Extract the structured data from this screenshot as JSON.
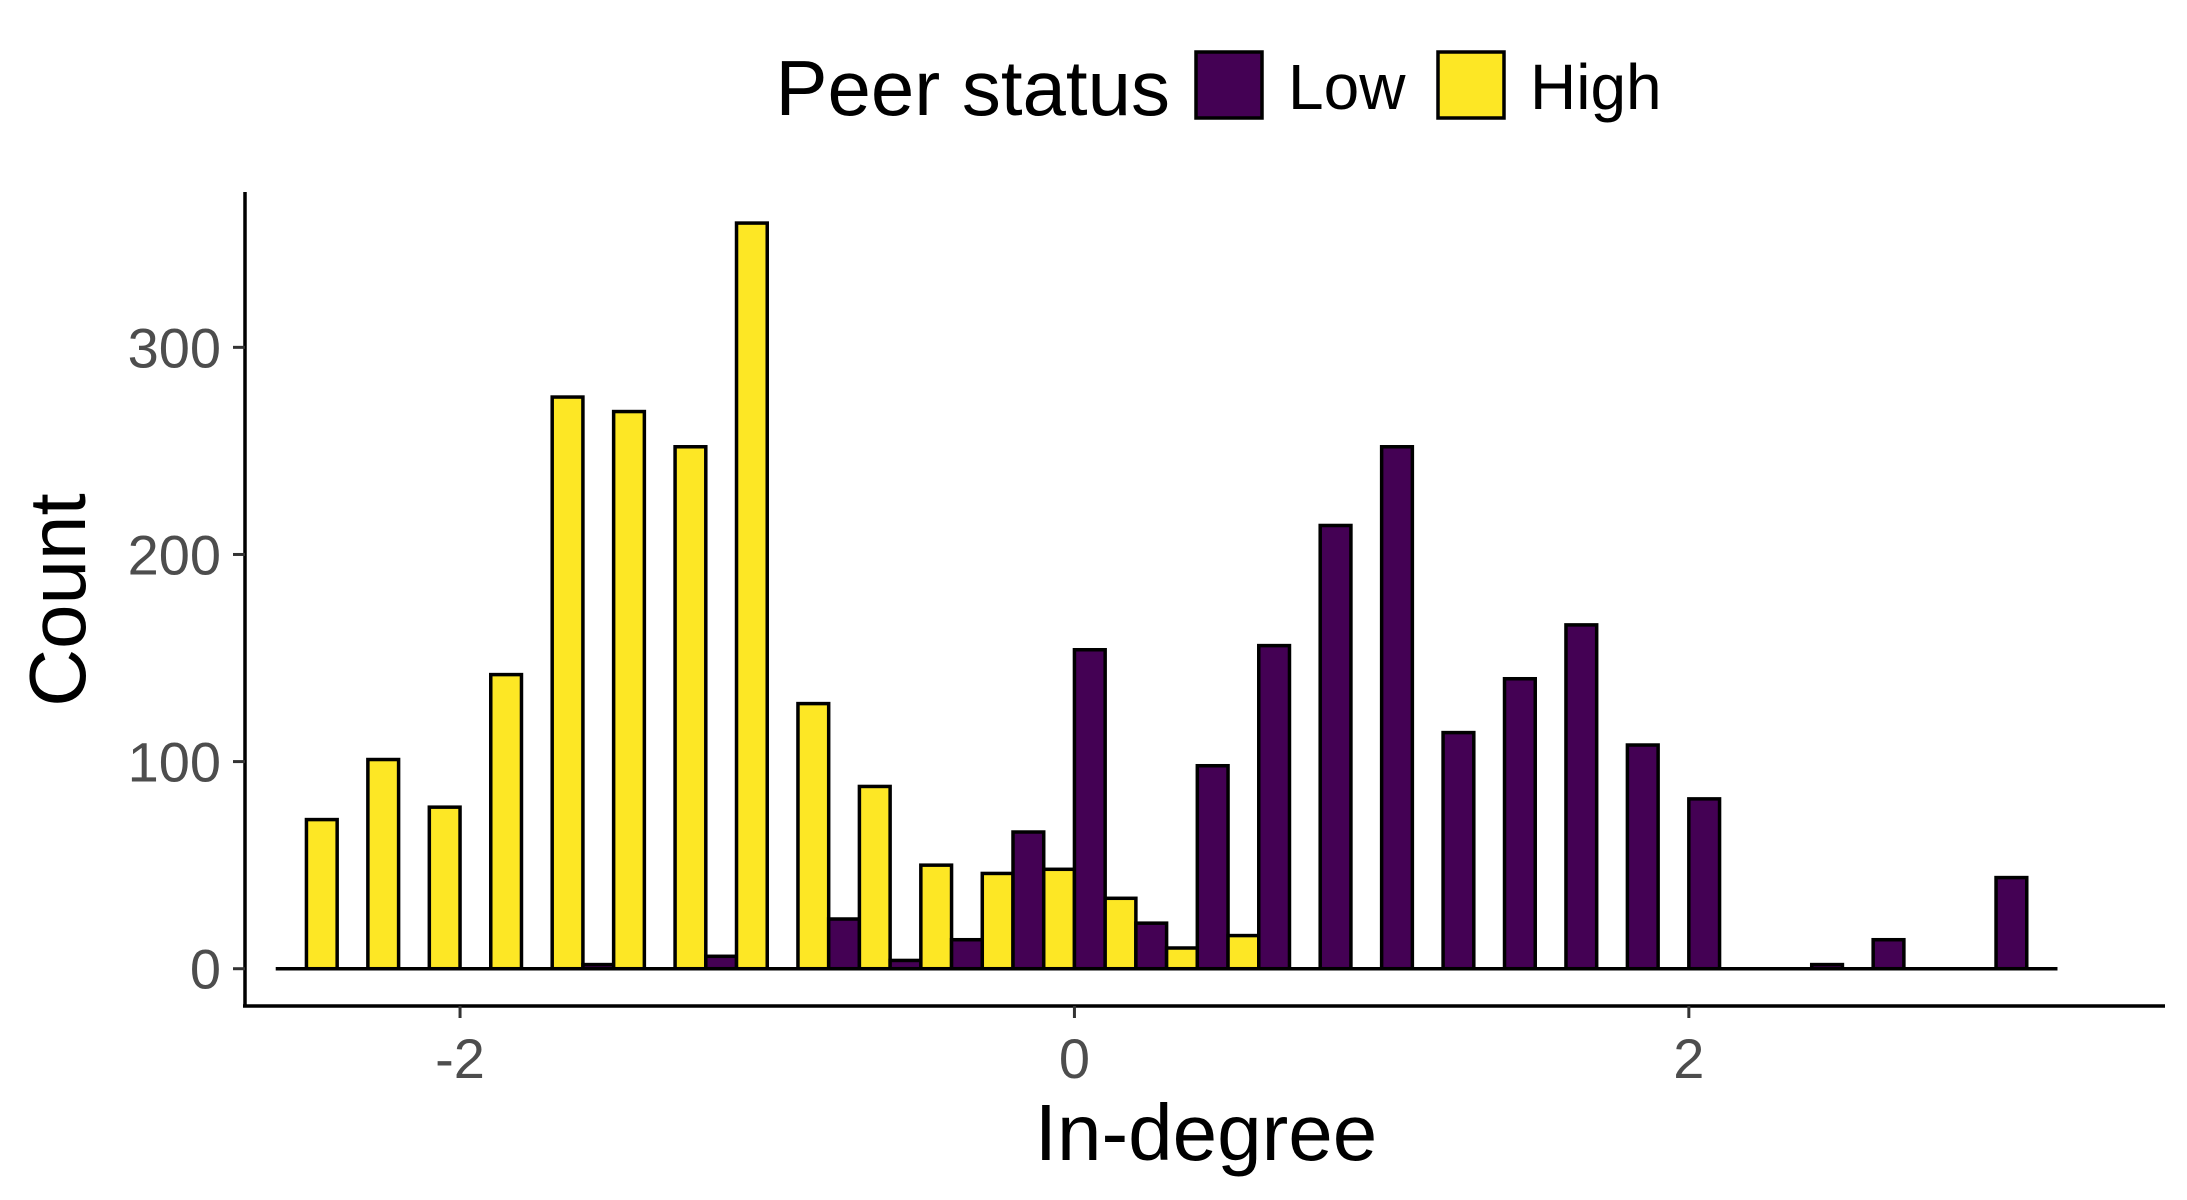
{
  "chart_data": {
    "type": "bar",
    "subtype": "dodged-histogram",
    "xlabel": "In-degree",
    "ylabel": "Count",
    "xlim": [
      -2.7,
      3.55
    ],
    "ylim": [
      -18,
      375
    ],
    "x_ticks": [
      -2,
      0,
      2
    ],
    "x_tick_labels": [
      "-2",
      "0",
      "2"
    ],
    "y_ticks": [
      0,
      100,
      200,
      300
    ],
    "y_tick_labels": [
      "0",
      "100",
      "200",
      "300"
    ],
    "grid": false,
    "legend": {
      "title": "Peer status",
      "position": "top",
      "entries": [
        "Low",
        "High"
      ]
    },
    "bin_width": 0.2,
    "bin_centers": [
      -2.5,
      -2.3,
      -2.1,
      -1.9,
      -1.7,
      -1.5,
      -1.3,
      -1.1,
      -0.9,
      -0.7,
      -0.5,
      -0.3,
      -0.1,
      0.1,
      0.3,
      0.5,
      0.7,
      0.9,
      1.1,
      1.3,
      1.5,
      1.7,
      1.9,
      2.1,
      2.3,
      2.5,
      2.7,
      2.9,
      3.1
    ],
    "series": [
      {
        "name": "Low",
        "color": "#440154",
        "values": [
          0,
          0,
          0,
          0,
          0,
          2,
          0,
          6,
          0,
          24,
          4,
          14,
          66,
          154,
          22,
          98,
          156,
          214,
          252,
          114,
          140,
          166,
          108,
          82,
          0,
          2,
          14,
          0,
          44
        ]
      },
      {
        "name": "High",
        "color": "#fde725",
        "values": [
          72,
          101,
          78,
          142,
          276,
          269,
          252,
          360,
          128,
          88,
          50,
          46,
          48,
          34,
          10,
          16,
          0,
          0,
          0,
          0,
          0,
          0,
          0,
          0,
          0,
          0,
          0,
          0,
          0
        ]
      }
    ]
  }
}
